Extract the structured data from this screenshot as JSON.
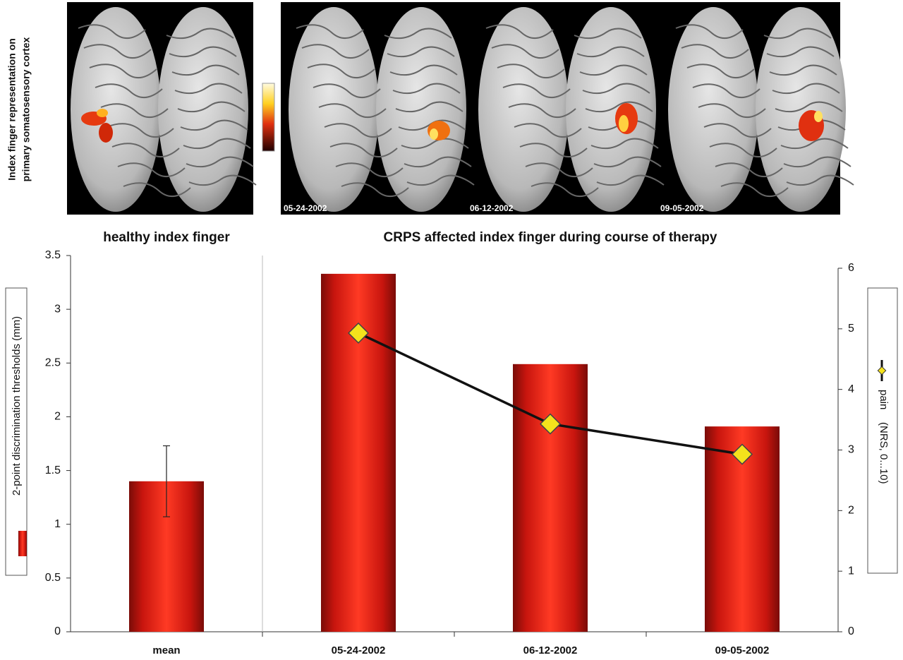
{
  "image_panel": {
    "label_lines": [
      "Index finger representation on",
      "primary somatosensory cortex"
    ]
  },
  "chart_data": {
    "type": "bar",
    "group_labels": [
      "healthy index finger",
      "CRPS affected index finger during course of therapy"
    ],
    "categories": [
      "mean",
      "05-24-2002",
      "06-12-2002",
      "09-05-2002"
    ],
    "ylabel": "2-point discrimination thresholds (mm)",
    "y2label": "(NRS, 0...10)",
    "series": [
      {
        "type": "bar",
        "color": "#e8261c",
        "values": [
          1.4,
          3.33,
          2.49,
          1.91
        ],
        "errors": [
          0.33,
          null,
          null,
          null
        ]
      },
      {
        "type": "line",
        "name": "pain",
        "axis": "y2",
        "color": "#111111",
        "marker_color": "#f4e21c",
        "values": [
          null,
          4.93,
          3.43,
          2.93
        ]
      }
    ],
    "ylim": [
      0,
      3.5
    ],
    "yticks": [
      0,
      0.5,
      1,
      1.5,
      2,
      2.5,
      3,
      3.5
    ],
    "y2lim": [
      0,
      6
    ],
    "y2ticks": [
      0,
      1,
      2,
      3,
      4,
      5,
      6
    ]
  }
}
